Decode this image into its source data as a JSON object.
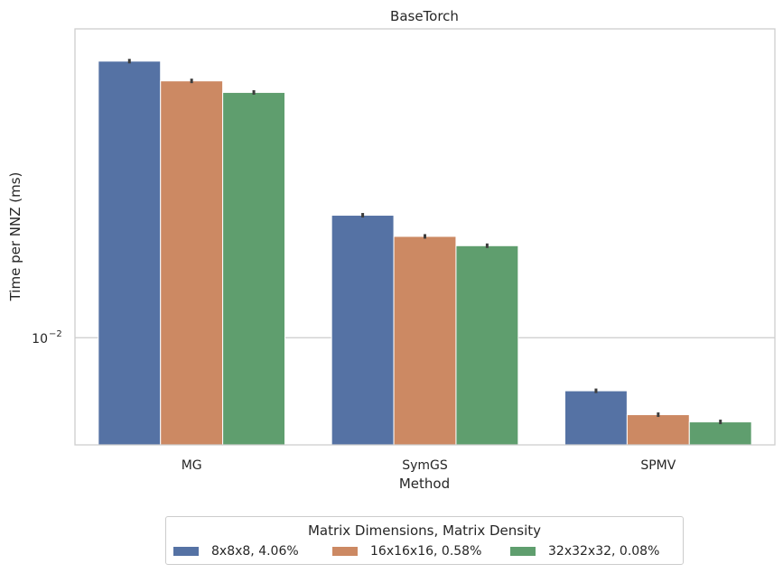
{
  "chart_data": {
    "type": "bar",
    "title": "BaseTorch",
    "xlabel": "Method",
    "ylabel": "Time per NNZ (ms)",
    "yscale": "log",
    "ylim": [
      0.0067,
      0.0317
    ],
    "yticks": [
      {
        "value": 0.01,
        "label": "10",
        "exp": "−2"
      }
    ],
    "categories": [
      "MG",
      "SymGS",
      "SPMV"
    ],
    "legend_title": "Matrix Dimensions, Matrix Density",
    "legend_position": "bottom-center",
    "grid": true,
    "series": [
      {
        "name": "8x8x8, 4.06%",
        "color": "#5572a4",
        "values": [
          0.0281,
          0.0158,
          0.0082
        ]
      },
      {
        "name": "16x16x16, 0.58%",
        "color": "#cc8963",
        "values": [
          0.0261,
          0.0146,
          0.0075
        ]
      },
      {
        "name": "32x32x32, 0.08%",
        "color": "#5f9e6e",
        "values": [
          0.025,
          0.0141,
          0.0073
        ]
      }
    ]
  }
}
